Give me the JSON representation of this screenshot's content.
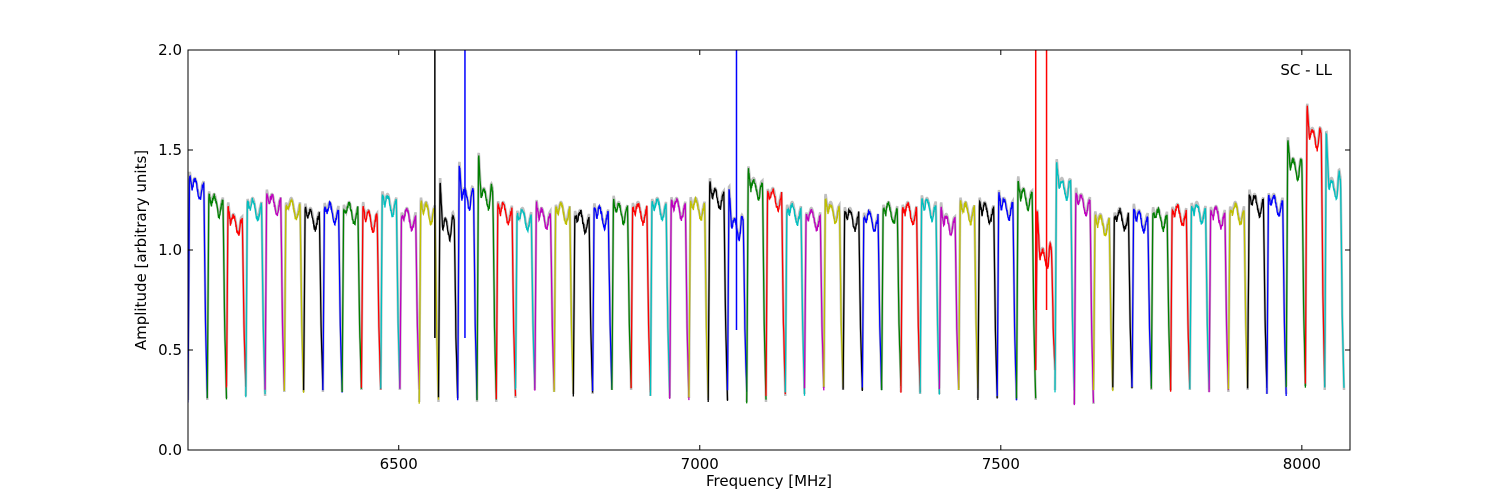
{
  "chart_data": {
    "type": "line",
    "title": "",
    "annotation": "SC - LL",
    "xlabel": "Frequency [MHz]",
    "ylabel": "Amplitude [arbitrary units]",
    "xlim": [
      6150,
      8080
    ],
    "ylim": [
      0.0,
      2.0
    ],
    "xticks": [
      6500,
      7000,
      7500,
      8000
    ],
    "yticks": [
      0.0,
      0.5,
      1.0,
      1.5,
      2.0
    ],
    "xtick_labels": [
      "6500",
      "7000",
      "7500",
      "8000"
    ],
    "ytick_labels": [
      "0.0",
      "0.5",
      "1.0",
      "1.5",
      "2.0"
    ],
    "grid": false,
    "legend": "none",
    "color_cycle": [
      "#0000ff",
      "#008000",
      "#ff0000",
      "#00bfbf",
      "#bf00bf",
      "#bfbf00",
      "#000000"
    ],
    "background_color": "#c0c0c0",
    "channel_start_mhz": 6150,
    "channel_width_mhz": 32,
    "series": [
      {
        "start": 6150,
        "level": 1.3,
        "peak": 1.38,
        "min": 0.25
      },
      {
        "start": 6182,
        "level": 1.22,
        "peak": 1.28,
        "min": 0.26
      },
      {
        "start": 6214,
        "level": 1.12,
        "peak": 1.23,
        "min": 0.32
      },
      {
        "start": 6246,
        "level": 1.2,
        "peak": 1.24,
        "min": 0.27
      },
      {
        "start": 6278,
        "level": 1.22,
        "peak": 1.29,
        "min": 0.29
      },
      {
        "start": 6310,
        "level": 1.2,
        "peak": 1.22,
        "min": 0.29
      },
      {
        "start": 6342,
        "level": 1.15,
        "peak": 1.22,
        "min": 0.3
      },
      {
        "start": 6374,
        "level": 1.18,
        "peak": 1.22,
        "min": 0.29
      },
      {
        "start": 6406,
        "level": 1.18,
        "peak": 1.21,
        "min": 0.3
      },
      {
        "start": 6438,
        "level": 1.14,
        "peak": 1.23,
        "min": 0.3
      },
      {
        "start": 6470,
        "level": 1.22,
        "peak": 1.28,
        "min": 0.3
      },
      {
        "start": 6502,
        "level": 1.15,
        "peak": 1.17,
        "min": 0.3
      },
      {
        "start": 6534,
        "level": 1.18,
        "peak": 1.25,
        "min": 0.24
      },
      {
        "start": 6566,
        "level": 1.1,
        "peak": 1.36,
        "min": 0.26,
        "spike": 6560
      },
      {
        "start": 6598,
        "level": 1.25,
        "peak": 1.44,
        "min": 0.26,
        "spike": 6610
      },
      {
        "start": 6630,
        "level": 1.25,
        "peak": 1.49,
        "min": 0.24
      },
      {
        "start": 6662,
        "level": 1.18,
        "peak": 1.23,
        "min": 0.26
      },
      {
        "start": 6694,
        "level": 1.15,
        "peak": 1.18,
        "min": 0.31
      },
      {
        "start": 6726,
        "level": 1.15,
        "peak": 1.24,
        "min": 0.3
      },
      {
        "start": 6758,
        "level": 1.18,
        "peak": 1.21,
        "min": 0.29
      },
      {
        "start": 6790,
        "level": 1.14,
        "peak": 1.18,
        "min": 0.28
      },
      {
        "start": 6822,
        "level": 1.16,
        "peak": 1.22,
        "min": 0.3
      },
      {
        "start": 6854,
        "level": 1.18,
        "peak": 1.26,
        "min": 0.31
      },
      {
        "start": 6886,
        "level": 1.18,
        "peak": 1.22,
        "min": 0.3
      },
      {
        "start": 6918,
        "level": 1.2,
        "peak": 1.24,
        "min": 0.27
      },
      {
        "start": 6950,
        "level": 1.2,
        "peak": 1.25,
        "min": 0.26
      },
      {
        "start": 6982,
        "level": 1.2,
        "peak": 1.25,
        "min": 0.26
      },
      {
        "start": 7014,
        "level": 1.25,
        "peak": 1.35,
        "min": 0.25
      },
      {
        "start": 7046,
        "level": 1.1,
        "peak": 1.32,
        "min": 0.3,
        "spike": 7061
      },
      {
        "start": 7078,
        "level": 1.3,
        "peak": 1.41,
        "min": 0.24
      },
      {
        "start": 7110,
        "level": 1.25,
        "peak": 1.29,
        "min": 0.27
      },
      {
        "start": 7142,
        "level": 1.18,
        "peak": 1.21,
        "min": 0.28
      },
      {
        "start": 7174,
        "level": 1.15,
        "peak": 1.17,
        "min": 0.31
      },
      {
        "start": 7206,
        "level": 1.18,
        "peak": 1.27,
        "min": 0.31
      },
      {
        "start": 7238,
        "level": 1.15,
        "peak": 1.2,
        "min": 0.3
      },
      {
        "start": 7270,
        "level": 1.14,
        "peak": 1.17,
        "min": 0.3
      },
      {
        "start": 7302,
        "level": 1.18,
        "peak": 1.21,
        "min": 0.31
      },
      {
        "start": 7334,
        "level": 1.18,
        "peak": 1.21,
        "min": 0.29
      },
      {
        "start": 7366,
        "level": 1.2,
        "peak": 1.26,
        "min": 0.28
      },
      {
        "start": 7398,
        "level": 1.12,
        "peak": 1.23,
        "min": 0.31
      },
      {
        "start": 7430,
        "level": 1.18,
        "peak": 1.25,
        "min": 0.3
      },
      {
        "start": 7462,
        "level": 1.18,
        "peak": 1.25,
        "min": 0.26
      },
      {
        "start": 7494,
        "level": 1.2,
        "peak": 1.29,
        "min": 0.26
      },
      {
        "start": 7526,
        "level": 1.25,
        "peak": 1.36,
        "min": 0.25
      },
      {
        "start": 7558,
        "level": 0.95,
        "peak": 1.2,
        "min": 0.4,
        "spike": 7558,
        "spike2": 7576
      },
      {
        "start": 7590,
        "level": 1.3,
        "peak": 1.45,
        "min": 0.3
      },
      {
        "start": 7622,
        "level": 1.22,
        "peak": 1.3,
        "min": 0.23
      },
      {
        "start": 7654,
        "level": 1.12,
        "peak": 1.18,
        "min": 0.3
      },
      {
        "start": 7686,
        "level": 1.15,
        "peak": 1.17,
        "min": 0.31
      },
      {
        "start": 7718,
        "level": 1.14,
        "peak": 1.22,
        "min": 0.31
      },
      {
        "start": 7750,
        "level": 1.15,
        "peak": 1.2,
        "min": 0.3
      },
      {
        "start": 7782,
        "level": 1.17,
        "peak": 1.2,
        "min": 0.3
      },
      {
        "start": 7814,
        "level": 1.18,
        "peak": 1.22,
        "min": 0.3
      },
      {
        "start": 7846,
        "level": 1.16,
        "peak": 1.2,
        "min": 0.29
      },
      {
        "start": 7878,
        "level": 1.18,
        "peak": 1.2,
        "min": 0.31
      },
      {
        "start": 7910,
        "level": 1.22,
        "peak": 1.29,
        "min": 0.3
      },
      {
        "start": 7942,
        "level": 1.22,
        "peak": 1.27,
        "min": 0.28
      },
      {
        "start": 7974,
        "level": 1.4,
        "peak": 1.56,
        "min": 0.32
      },
      {
        "start": 8006,
        "level": 1.55,
        "peak": 1.73,
        "min": 0.32
      },
      {
        "start": 8038,
        "level": 1.3,
        "peak": 1.6,
        "min": 0.3
      }
    ]
  }
}
